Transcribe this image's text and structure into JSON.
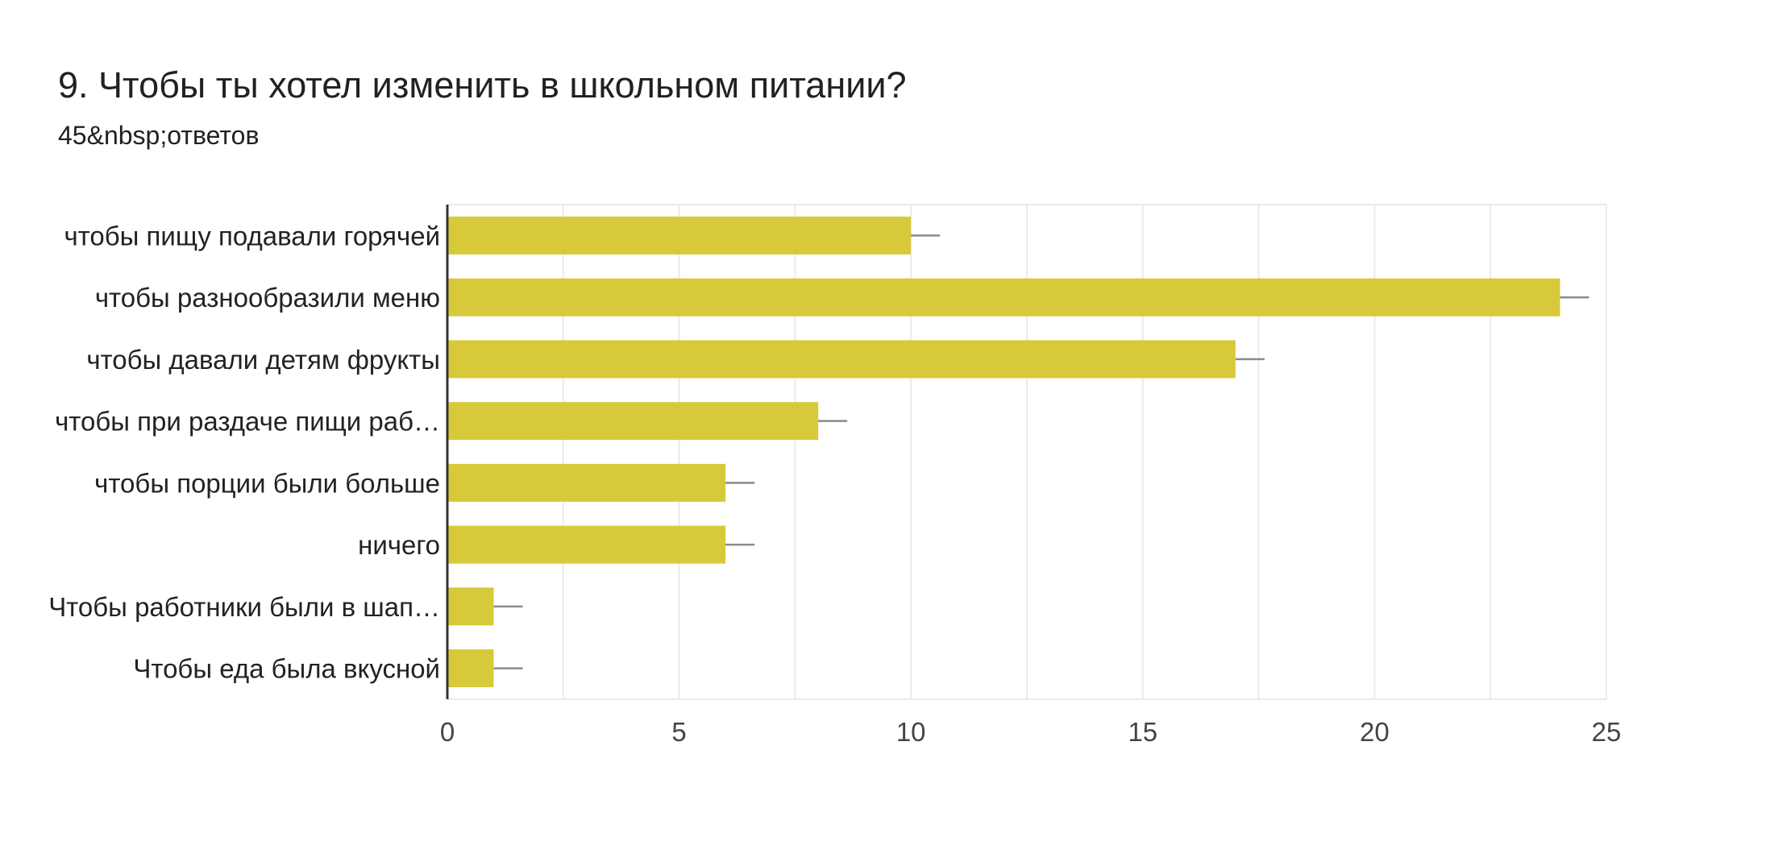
{
  "header": {
    "title": "9. Чтобы ты хотел изменить в школьном питании?",
    "responses": "45&nbsp;ответов"
  },
  "chart_data": {
    "type": "bar",
    "orientation": "horizontal",
    "categories": [
      "чтобы пищу подавали горячей",
      "чтобы разнообразили меню",
      "чтобы давали детям фрукты",
      "чтобы при раздаче пищи раб…",
      "чтобы порции были больше",
      "ничего",
      "Чтобы работники были в шап…",
      "Чтобы еда была вкусной"
    ],
    "values": [
      10,
      24,
      17,
      8,
      6,
      6,
      1,
      1
    ],
    "error_bars": true,
    "xlim": [
      0,
      25
    ],
    "xticks": [
      0,
      5,
      10,
      15,
      20,
      25
    ],
    "grid": true,
    "bar_color": "#d8c93b",
    "error_color": "#8a8a8a",
    "grid_color": "#ebebeb",
    "axis_color": "#333333"
  }
}
